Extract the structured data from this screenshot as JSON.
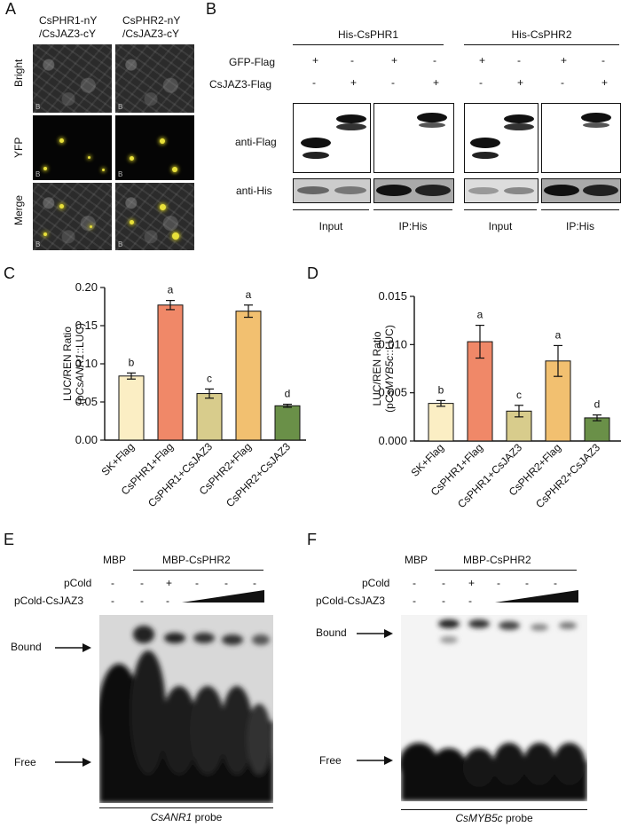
{
  "panels": {
    "A": "A",
    "B": "B",
    "C": "C",
    "D": "D",
    "E": "E",
    "F": "F"
  },
  "panelA": {
    "col1": "CsPHR1-nY\n/CsJAZ3-cY",
    "col1a": "CsPHR1-nY",
    "col1b": "/CsJAZ3-cY",
    "col2a": "CsPHR2-nY",
    "col2b": "/CsJAZ3-cY",
    "rows": [
      "Bright",
      "YFP",
      "Merge"
    ],
    "scale_text": "B"
  },
  "panelB": {
    "group1": "His-CsPHR1",
    "group2": "His-CsPHR2",
    "row_gfp": "GFP-Flag",
    "row_jaz": "CsJAZ3-Flag",
    "gfp_signs": [
      "+",
      "-",
      "+",
      "-",
      "+",
      "-",
      "+",
      "-"
    ],
    "jaz_signs": [
      "-",
      "+",
      "-",
      "+",
      "-",
      "+",
      "-",
      "+"
    ],
    "blot1": "anti-Flag",
    "blot2": "anti-His",
    "lane_labels": [
      "Input",
      "IP:His",
      "Input",
      "IP:His"
    ]
  },
  "chart_data": [
    {
      "type": "bar",
      "panel": "C",
      "ylabel_line1": "LUC/REN Ratio",
      "ylabel_line2_prefix": "(p",
      "ylabel_line2_italic": "CsANR1",
      "ylabel_line2_suffix": "::LUC)",
      "categories": [
        "SK+Flag",
        "CsPHR1+Flag",
        "CsPHR1+CsJAZ3",
        "CsPHR2+Flag",
        "CsPHR2+CsJAZ3"
      ],
      "values": [
        0.084,
        0.177,
        0.061,
        0.169,
        0.045
      ],
      "errors": [
        0.004,
        0.006,
        0.006,
        0.008,
        0.002
      ],
      "letters": [
        "b",
        "a",
        "c",
        "a",
        "d"
      ],
      "colors": [
        "#fbeec4",
        "#f08868",
        "#d8cc8c",
        "#f2c070",
        "#6a9048"
      ],
      "ylim": [
        0,
        0.2
      ],
      "yticks": [
        "0.00",
        "0.05",
        "0.10",
        "0.15",
        "0.20"
      ]
    },
    {
      "type": "bar",
      "panel": "D",
      "ylabel_line1": "LUC/REN Ratio",
      "ylabel_line2_prefix": "(p",
      "ylabel_line2_italic": "CsMYB5c",
      "ylabel_line2_suffix": "::LUC)",
      "categories": [
        "SK+Flag",
        "CsPHR1+Flag",
        "CsPHR1+CsJAZ3",
        "CsPHR2+Flag",
        "CsPHR2+CsJAZ3"
      ],
      "values": [
        0.0039,
        0.0103,
        0.0031,
        0.0083,
        0.0024
      ],
      "errors": [
        0.0003,
        0.0017,
        0.0006,
        0.0016,
        0.0003
      ],
      "letters": [
        "b",
        "a",
        "c",
        "a",
        "d"
      ],
      "colors": [
        "#fbeec4",
        "#f08868",
        "#d8cc8c",
        "#f2c070",
        "#6a9048"
      ],
      "ylim": [
        0,
        0.015
      ],
      "yticks": [
        "0.000",
        "0.005",
        "0.010",
        "0.015"
      ]
    }
  ],
  "panelE": {
    "mbp": "MBP",
    "protein": "MBP-CsPHR2",
    "pcold": "pCold",
    "pcold_jaz": "pCold-CsJAZ3",
    "mbp_signs": [
      "-"
    ],
    "pcold_signs": [
      "-",
      "-",
      "+",
      "-",
      "-",
      "-"
    ],
    "jaz_signs": [
      "-",
      "-",
      "-"
    ],
    "bound": "Bound",
    "free": "Free",
    "probe_italic": "CsANR1",
    "probe_suffix": " probe"
  },
  "panelF": {
    "mbp": "MBP",
    "protein": "MBP-CsPHR2",
    "pcold": "pCold",
    "pcold_jaz": "pCold-CsJAZ3",
    "bound": "Bound",
    "free": "Free",
    "probe_italic": "CsMYB5c",
    "probe_suffix": " probe"
  }
}
